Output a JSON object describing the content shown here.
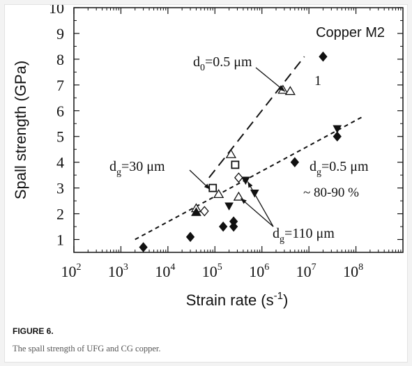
{
  "figure": {
    "label": "FIGURE 6.",
    "caption": "The spall strength of UFG and CG copper."
  },
  "chart_data": {
    "type": "scatter",
    "title": "Copper M2",
    "xlabel": "Strain rate (s",
    "xlabel_sup": "-1",
    "xlabel_close": ")",
    "ylabel": "Spall strength (GPa)",
    "x_scale": "log",
    "xlim": [
      100,
      1000000000
    ],
    "ylim": [
      0.5,
      10
    ],
    "x_ticks": [
      {
        "value": 100,
        "base": "10",
        "exp": "2"
      },
      {
        "value": 1000,
        "base": "10",
        "exp": "3"
      },
      {
        "value": 10000,
        "base": "10",
        "exp": "4"
      },
      {
        "value": 100000,
        "base": "10",
        "exp": "5"
      },
      {
        "value": 1000000,
        "base": "10",
        "exp": "6"
      },
      {
        "value": 10000000,
        "base": "10",
        "exp": "7"
      },
      {
        "value": 100000000,
        "base": "10",
        "exp": "8"
      }
    ],
    "y_ticks": [
      1,
      2,
      3,
      4,
      5,
      6,
      7,
      8,
      9,
      10
    ],
    "grid": false,
    "series": [
      {
        "marker": "diamond-filled",
        "points": [
          [
            3000,
            0.7
          ],
          [
            30000,
            1.1
          ],
          [
            150000,
            1.5
          ],
          [
            250000,
            1.7
          ],
          [
            250000,
            1.5
          ],
          [
            5000000,
            4.0
          ],
          [
            20000000,
            8.1
          ],
          [
            40000000,
            5.0
          ]
        ]
      },
      {
        "marker": "triangle-down-filled",
        "points": [
          [
            200000,
            2.3
          ],
          [
            450000,
            3.3
          ],
          [
            700000,
            2.8
          ],
          [
            40000000,
            5.3
          ]
        ]
      },
      {
        "marker": "triangle-open",
        "points": [
          [
            40000,
            2.2
          ],
          [
            120000,
            2.75
          ],
          [
            220000,
            4.3
          ],
          [
            320000,
            2.65
          ],
          [
            2800000,
            6.8
          ],
          [
            4000000,
            6.75
          ]
        ]
      },
      {
        "marker": "diamond-open",
        "points": [
          [
            60000,
            2.1
          ],
          [
            320000,
            3.4
          ]
        ]
      },
      {
        "marker": "triangle-up-filled",
        "points": [
          [
            40000,
            2.05
          ]
        ]
      },
      {
        "marker": "square-open",
        "points": [
          [
            90000,
            3.0
          ],
          [
            270000,
            3.9
          ]
        ]
      }
    ],
    "fit_lines": [
      {
        "style": "long-dash",
        "x": [
          75000,
          8000000
        ],
        "y": [
          3.4,
          8.1
        ]
      },
      {
        "style": "short-dash",
        "x": [
          2000,
          150000000
        ],
        "y": [
          1.0,
          5.8
        ]
      }
    ],
    "annotations": [
      {
        "parts": [
          {
            "t": "d"
          },
          {
            "t": "0",
            "sub": true
          },
          {
            "t": "=0.5 μm"
          }
        ],
        "target": [
          2800000,
          6.8
        ]
      },
      {
        "parts": [
          {
            "t": "1"
          }
        ]
      },
      {
        "parts": [
          {
            "t": "d"
          },
          {
            "t": "g",
            "sub": true
          },
          {
            "t": "=30  μm"
          }
        ],
        "target": [
          90000,
          3.0
        ]
      },
      {
        "parts": [
          {
            "t": "d"
          },
          {
            "t": "g",
            "sub": true
          },
          {
            "t": "=0.5  μm"
          }
        ]
      },
      {
        "parts": [
          {
            "t": "~ 80-90 %"
          }
        ]
      },
      {
        "parts": [
          {
            "t": "d"
          },
          {
            "t": "g",
            "sub": true
          },
          {
            "t": "=110 μm"
          }
        ],
        "targets": [
          [
            320000,
            2.65
          ],
          [
            450000,
            3.3
          ]
        ]
      }
    ]
  }
}
